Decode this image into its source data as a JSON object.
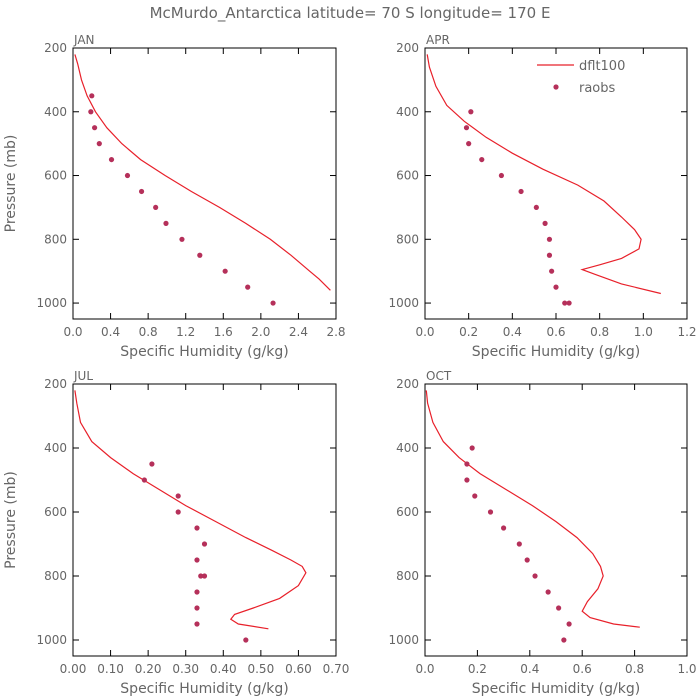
{
  "figure": {
    "title": "McMurdo_Antarctica  latitude= 70 S longitude= 170 E",
    "legend": {
      "model_label": "dflt100",
      "obs_label": "raobs"
    },
    "colors": {
      "model": "#e8202a",
      "obs": "#b5305a",
      "text": "#666666",
      "axis": "#000000"
    }
  },
  "chart_data": [
    {
      "type": "line+scatter",
      "panel": "JAN",
      "xlabel": "Specific Humidity (g/kg)",
      "ylabel": "Pressure (mb)",
      "xlim": [
        0,
        2.8
      ],
      "ylim": [
        200,
        1050
      ],
      "y_inverted": true,
      "xticks": [
        0,
        0.4,
        0.8,
        1.2,
        1.6,
        2.0,
        2.4,
        2.8
      ],
      "xtick_labels": [
        "0.0",
        "0.4",
        "0.8",
        "1.2",
        "1.6",
        "2.0",
        "2.4",
        "2.8"
      ],
      "yticks": [
        200,
        400,
        600,
        800,
        1000
      ],
      "ytick_labels": [
        "200",
        "400",
        "600",
        "800",
        "1000"
      ],
      "series": [
        {
          "name": "dflt100",
          "kind": "line",
          "x": [
            0.02,
            0.05,
            0.09,
            0.15,
            0.24,
            0.36,
            0.52,
            0.72,
            0.98,
            1.26,
            1.56,
            1.84,
            2.1,
            2.32,
            2.52,
            2.62,
            2.74
          ],
          "y": [
            220,
            250,
            300,
            350,
            400,
            450,
            500,
            550,
            600,
            650,
            700,
            750,
            800,
            850,
            900,
            925,
            960
          ]
        },
        {
          "name": "raobs",
          "kind": "scatter",
          "x": [
            0.2,
            0.19,
            0.23,
            0.28,
            0.41,
            0.58,
            0.73,
            0.88,
            0.99,
            1.16,
            1.35,
            1.62,
            1.86,
            2.13
          ],
          "y": [
            350,
            400,
            450,
            500,
            550,
            600,
            650,
            700,
            750,
            800,
            850,
            900,
            950,
            1000
          ]
        }
      ]
    },
    {
      "type": "line+scatter",
      "panel": "APR",
      "xlabel": "Specific Humidity (g/kg)",
      "ylabel": "",
      "xlim": [
        0,
        1.2
      ],
      "ylim": [
        200,
        1050
      ],
      "y_inverted": true,
      "xticks": [
        0,
        0.2,
        0.4,
        0.6,
        0.8,
        1.0,
        1.2
      ],
      "xtick_labels": [
        "0.0",
        "0.2",
        "0.4",
        "0.6",
        "0.8",
        "1.0",
        "1.2"
      ],
      "yticks": [
        200,
        400,
        600,
        800,
        1000
      ],
      "ytick_labels": [
        "200",
        "400",
        "600",
        "800",
        "1000"
      ],
      "series": [
        {
          "name": "dflt100",
          "kind": "line",
          "x": [
            0.01,
            0.02,
            0.05,
            0.1,
            0.18,
            0.28,
            0.4,
            0.54,
            0.7,
            0.82,
            0.9,
            0.96,
            0.99,
            0.98,
            0.9,
            0.8,
            0.72,
            0.78,
            0.9,
            1.08
          ],
          "y": [
            220,
            260,
            320,
            380,
            430,
            480,
            530,
            580,
            630,
            680,
            730,
            770,
            800,
            830,
            860,
            880,
            895,
            910,
            940,
            970
          ]
        },
        {
          "name": "raobs",
          "kind": "scatter",
          "x": [
            0.21,
            0.19,
            0.2,
            0.26,
            0.35,
            0.44,
            0.51,
            0.55,
            0.57,
            0.57,
            0.58,
            0.6,
            0.64,
            0.66
          ],
          "y": [
            400,
            450,
            500,
            550,
            600,
            650,
            700,
            750,
            800,
            850,
            900,
            950,
            1000,
            1000
          ]
        }
      ]
    },
    {
      "type": "line+scatter",
      "panel": "JUL",
      "xlabel": "Specific Humidity (g/kg)",
      "ylabel": "Pressure (mb)",
      "xlim": [
        0,
        0.7
      ],
      "ylim": [
        200,
        1050
      ],
      "y_inverted": true,
      "xticks": [
        0,
        0.1,
        0.2,
        0.3,
        0.4,
        0.5,
        0.6,
        0.7
      ],
      "xtick_labels": [
        "0.00",
        "0.10",
        "0.20",
        "0.30",
        "0.40",
        "0.50",
        "0.60",
        "0.70"
      ],
      "yticks": [
        200,
        400,
        600,
        800,
        1000
      ],
      "ytick_labels": [
        "200",
        "400",
        "600",
        "800",
        "1000"
      ],
      "series": [
        {
          "name": "dflt100",
          "kind": "line",
          "x": [
            0.005,
            0.01,
            0.02,
            0.05,
            0.1,
            0.16,
            0.23,
            0.3,
            0.38,
            0.46,
            0.53,
            0.58,
            0.61,
            0.62,
            0.6,
            0.55,
            0.48,
            0.43,
            0.42,
            0.44,
            0.52
          ],
          "y": [
            220,
            260,
            320,
            380,
            430,
            480,
            530,
            580,
            630,
            680,
            720,
            750,
            770,
            790,
            830,
            870,
            900,
            920,
            935,
            950,
            965
          ]
        },
        {
          "name": "raobs",
          "kind": "scatter",
          "x": [
            0.21,
            0.19,
            0.28,
            0.28,
            0.33,
            0.35,
            0.33,
            0.35,
            0.34,
            0.33,
            0.33,
            0.33,
            0.46
          ],
          "y": [
            450,
            500,
            550,
            600,
            650,
            700,
            750,
            800,
            800,
            850,
            900,
            950,
            1000
          ]
        }
      ]
    },
    {
      "type": "line+scatter",
      "panel": "OCT",
      "xlabel": "Specific Humidity (g/kg)",
      "ylabel": "",
      "xlim": [
        0,
        1.0
      ],
      "ylim": [
        200,
        1050
      ],
      "y_inverted": true,
      "xticks": [
        0,
        0.2,
        0.4,
        0.6,
        0.8,
        1.0
      ],
      "xtick_labels": [
        "0.0",
        "0.2",
        "0.4",
        "0.6",
        "0.8",
        "1.0"
      ],
      "yticks": [
        200,
        400,
        600,
        800,
        1000
      ],
      "ytick_labels": [
        "200",
        "400",
        "600",
        "800",
        "1000"
      ],
      "series": [
        {
          "name": "dflt100",
          "kind": "line",
          "x": [
            0.005,
            0.01,
            0.03,
            0.07,
            0.13,
            0.21,
            0.31,
            0.41,
            0.5,
            0.58,
            0.64,
            0.67,
            0.68,
            0.66,
            0.62,
            0.6,
            0.63,
            0.72,
            0.82
          ],
          "y": [
            220,
            260,
            320,
            380,
            430,
            480,
            530,
            580,
            630,
            680,
            730,
            770,
            800,
            840,
            880,
            910,
            930,
            950,
            960
          ]
        },
        {
          "name": "raobs",
          "kind": "scatter",
          "x": [
            0.18,
            0.16,
            0.16,
            0.19,
            0.25,
            0.3,
            0.36,
            0.39,
            0.42,
            0.47,
            0.51,
            0.55,
            0.53
          ],
          "y": [
            400,
            450,
            500,
            550,
            600,
            650,
            700,
            750,
            800,
            850,
            900,
            950,
            1000
          ]
        }
      ]
    }
  ]
}
